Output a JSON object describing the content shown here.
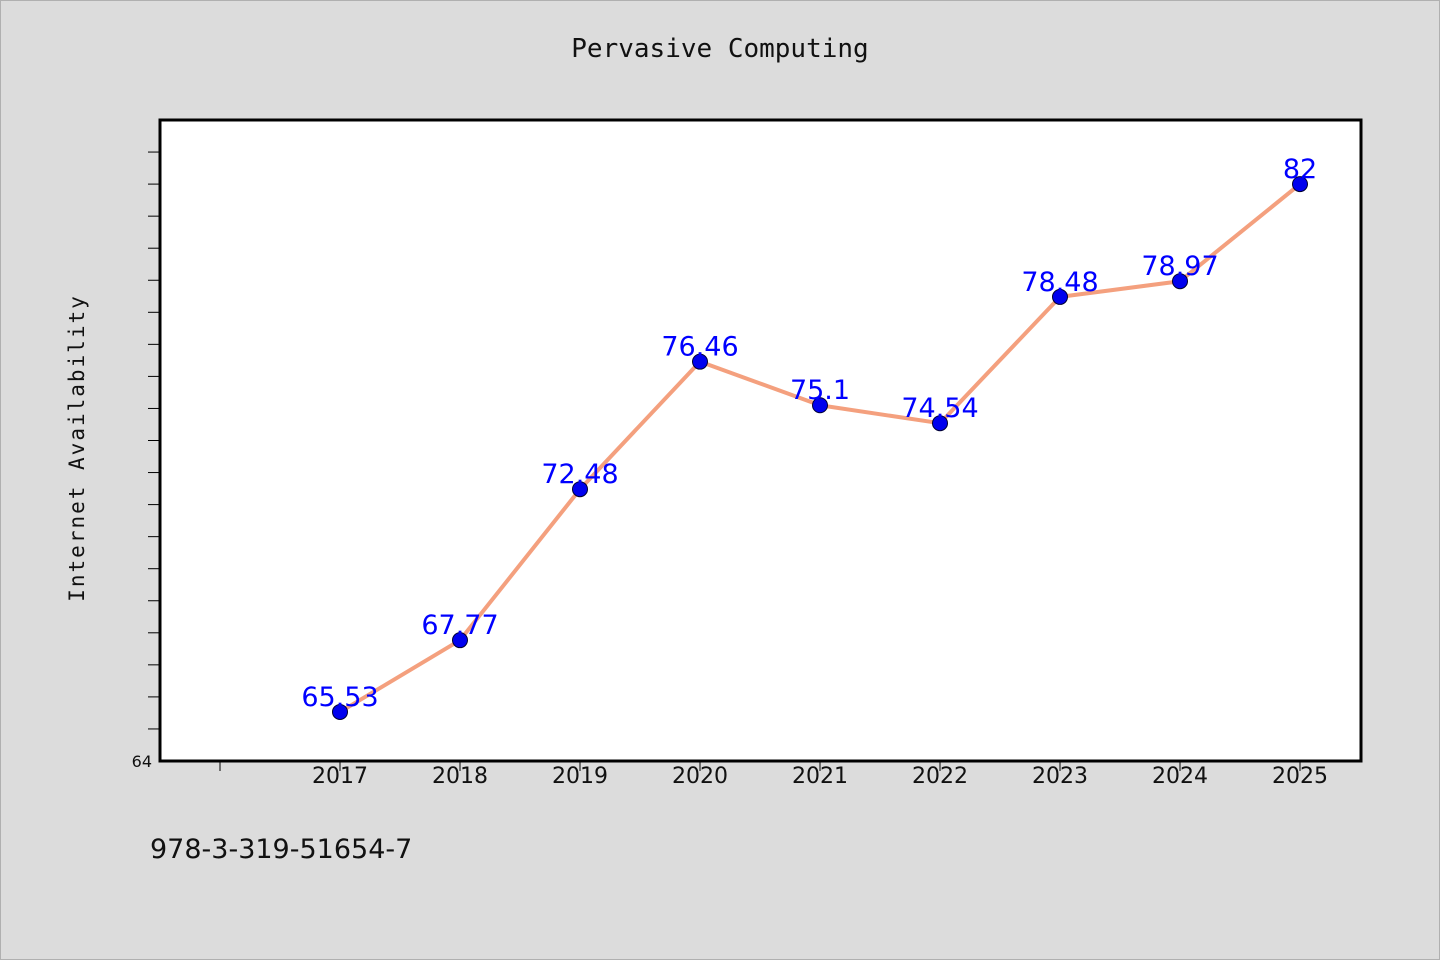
{
  "chart_data": {
    "type": "line",
    "title": "Pervasive Computing",
    "xlabel": "",
    "ylabel": "Internet Availability",
    "categories": [
      "2017",
      "2018",
      "2019",
      "2020",
      "2021",
      "2022",
      "2023",
      "2024",
      "2025"
    ],
    "series": [
      {
        "values": [
          65.53,
          67.77,
          72.48,
          76.46,
          75.1,
          74.54,
          78.48,
          78.97,
          82
        ]
      }
    ],
    "data_labels": [
      "65.53",
      "67.77",
      "72.48",
      "76.46",
      "75.1",
      "74.54",
      "78.48",
      "78.97",
      "82"
    ],
    "y_tick_labels": [
      "64"
    ],
    "ylim": [
      64,
      84
    ],
    "grid": false,
    "legend": "none",
    "colors": {
      "line": "#f4a07e",
      "marker": "#0000ee",
      "label": "#0000ff",
      "plot_background": "#ffffff",
      "page_background": "#dcdcdc"
    }
  },
  "footer_text": "978-3-319-51654-7"
}
